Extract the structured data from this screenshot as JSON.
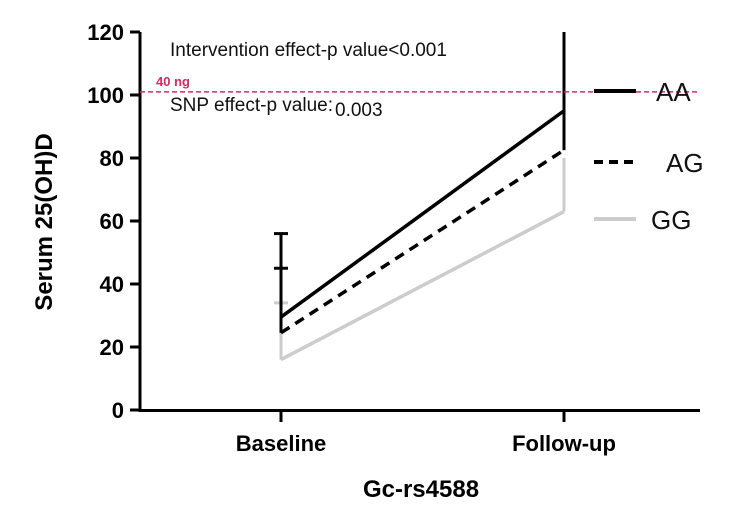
{
  "chart_data": {
    "type": "line",
    "categories": [
      "Baseline",
      "Follow-up"
    ],
    "xlabel": "Gc-rs4588",
    "ylabel": "Serum 25(OH)D",
    "ylim": [
      0,
      120
    ],
    "yticks": [
      0,
      20,
      40,
      60,
      80,
      100,
      120
    ],
    "series": [
      {
        "name": "AA",
        "values": [
          29.5,
          95
        ],
        "upper": [
          56,
          120
        ],
        "color": "#000000",
        "dash": "solid"
      },
      {
        "name": "AG",
        "values": [
          24.5,
          82.5
        ],
        "upper": [
          45,
          100
        ],
        "color": "#000000",
        "dash": "dashed"
      },
      {
        "name": "GG",
        "values": [
          16,
          63
        ],
        "upper": [
          34,
          80
        ],
        "color": "#cccccc",
        "dash": "solid"
      }
    ],
    "reference_line": {
      "value": 101,
      "label": "40 ng",
      "color": "#e0245e"
    },
    "annotations": [
      {
        "text": "Intervention effect-p value<0.001"
      },
      {
        "prefix": "SNP effect-p value:",
        "value": "0.003"
      }
    ],
    "legend_position": "right"
  }
}
